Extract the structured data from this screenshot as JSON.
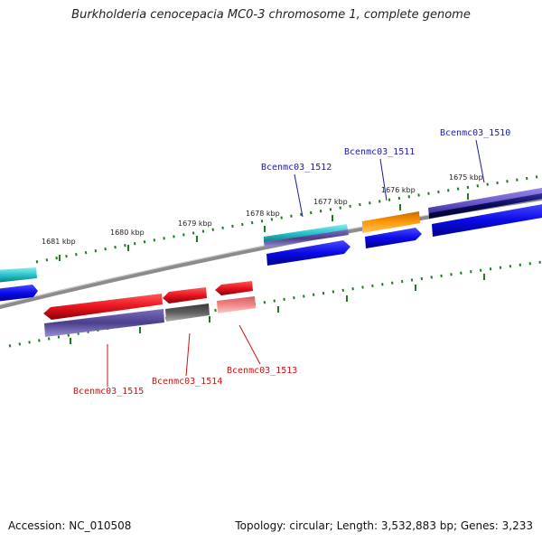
{
  "title": "Burkholderia cenocepacia MC0-3 chromosome 1, complete genome",
  "footer": {
    "accession": "Accession: NC_010508",
    "topology": "Topology: circular; Length: 3,532,883 bp; Genes: 3,233"
  },
  "kbp_labels": [
    "1681 kbp",
    "1680 kbp",
    "1679 kbp",
    "1678 kbp",
    "1677 kbp",
    "1676 kbp",
    "1675 kbp"
  ],
  "genes_top": [
    {
      "label": "Bcenmc03_1512"
    },
    {
      "label": "Bcenmc03_1511"
    },
    {
      "label": "Bcenmc03_1510"
    }
  ],
  "genes_bottom": [
    {
      "label": "Bcenmc03_1515"
    },
    {
      "label": "Bcenmc03_1514"
    },
    {
      "label": "Bcenmc03_1513"
    }
  ],
  "colors": {
    "cyan": "#27c4cc",
    "blue": "#0a0ae8",
    "red": "#e8141e",
    "orange": "#ff9a0a",
    "slate": "#4b3f8c",
    "gray": "#5f5f5f",
    "pink": "#f08888",
    "tick_green": "#1f7a1f"
  }
}
